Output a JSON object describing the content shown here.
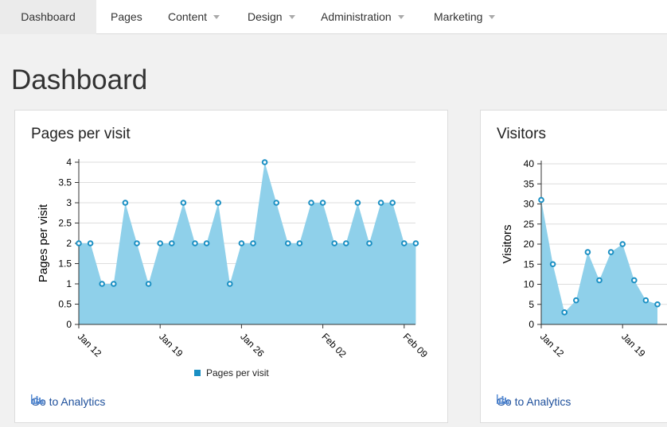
{
  "nav": {
    "items": [
      {
        "label": "Dashboard",
        "dropdown": false,
        "active": true
      },
      {
        "label": "Pages",
        "dropdown": false,
        "active": false
      },
      {
        "label": "Content",
        "dropdown": true,
        "active": false
      },
      {
        "label": "Design",
        "dropdown": true,
        "active": false
      },
      {
        "label": "Administration",
        "dropdown": true,
        "active": false
      },
      {
        "label": "Marketing",
        "dropdown": true,
        "active": false
      }
    ]
  },
  "page": {
    "title": "Dashboard"
  },
  "cards": [
    {
      "title": "Pages per visit",
      "link_label": "Go to Analytics"
    },
    {
      "title": "Visitors",
      "link_label": "Go to Analytics"
    }
  ],
  "colors": {
    "fill": "#8fd0ea",
    "line": "#1a8fc3",
    "link": "#1d4f9b",
    "grid": "#dddddd"
  },
  "chart_data": [
    {
      "type": "area",
      "title": "",
      "ylabel": "Pages per visit",
      "xlabel": "",
      "ylim": [
        0,
        4
      ],
      "y_ticks": [
        "0",
        "0.5",
        "1",
        "1.5",
        "2",
        "2.5",
        "3",
        "3.5",
        "4"
      ],
      "x_ticks": [
        "Jan 12",
        "Jan 19",
        "Jan 26",
        "Feb 02",
        "Feb 09"
      ],
      "legend": "bottom",
      "series": [
        {
          "name": "Pages per visit",
          "x_start": "Jan 12",
          "x_end": "Feb 09",
          "values": [
            2,
            2,
            1,
            1,
            3,
            2,
            1,
            2,
            2,
            3,
            2,
            2,
            3,
            1,
            2,
            2,
            4,
            3,
            2,
            2,
            3,
            3,
            2,
            2,
            3,
            2,
            3,
            3,
            2,
            2
          ]
        }
      ]
    },
    {
      "type": "area",
      "title": "",
      "ylabel": "Visitors",
      "xlabel": "",
      "ylim": [
        0,
        40
      ],
      "y_ticks": [
        "0",
        "5",
        "10",
        "15",
        "20",
        "25",
        "30",
        "35",
        "40"
      ],
      "x_ticks": [
        "Jan 12",
        "Jan 19"
      ],
      "legend": "none",
      "series": [
        {
          "name": "Visitors",
          "x_start": "Jan 12",
          "values": [
            31,
            15,
            3,
            6,
            18,
            11,
            18,
            20,
            11,
            6,
            5
          ]
        }
      ]
    }
  ]
}
